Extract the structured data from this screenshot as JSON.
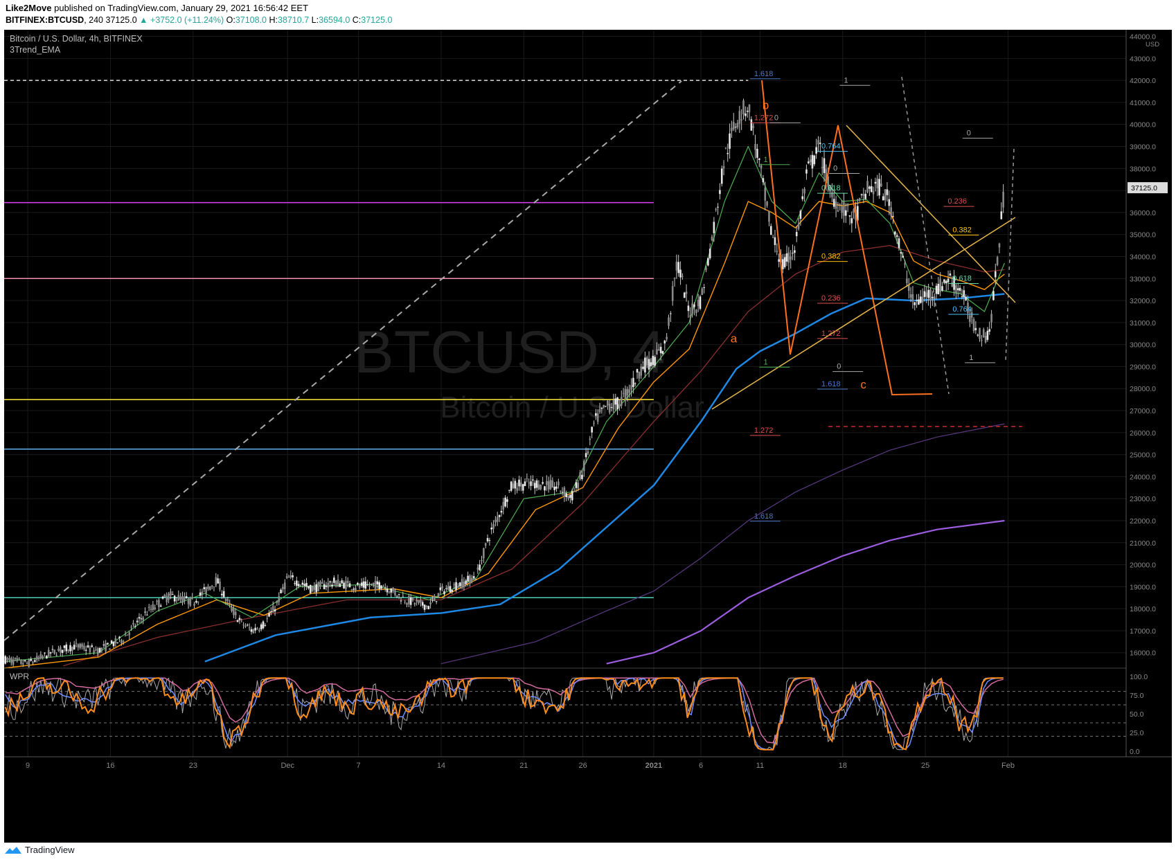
{
  "header": {
    "publisher": "Like2Move",
    "published_text": "published on TradingView.com, January 29, 2021 16:56:42 EET",
    "symbol": "BITFINEX:BTCUSD",
    "interval": "240",
    "last": "37125.0",
    "change": "+3752.0 (+11.24%)",
    "open_label": "O:",
    "open": "37108.0",
    "high_label": "H:",
    "high": "38710.7",
    "low_label": "L:",
    "low": "36594.0",
    "close_label": "C:",
    "close": "37125.0"
  },
  "chart_title": "Bitcoin / U.S. Dollar, 4h, BITFINEX",
  "indicator_label": "3Trend_EMA",
  "watermark": {
    "line1": "BTCUSD, 4",
    "line2": "Bitcoin / U.S. Dollar"
  },
  "wpr_label": "WPR",
  "footer_brand": "TradingView",
  "colors": {
    "background": "#000000",
    "grid": "#1a1a1a",
    "ema_fast": "#4caf50",
    "ema_mid": "#ff9800",
    "ema_slow": "#8b2e2e",
    "ema_200": "#1e88e5",
    "ema_violet": "#9c5de0",
    "wpr_orange": "#ff8c1a",
    "wpr_blue": "#6e8fff",
    "wpr_pink": "#d46aa0",
    "wpr_gray": "#aaaaaa"
  },
  "chart_data": {
    "type": "candlestick",
    "y_axis": {
      "unit": "USD",
      "ticks": [
        "44000.0",
        "43000.0",
        "42000.0",
        "41000.0",
        "40000.0",
        "39000.0",
        "38000.0",
        "37000.0",
        "36000.0",
        "35000.0",
        "34000.0",
        "33000.0",
        "32000.0",
        "31000.0",
        "30000.0",
        "29000.0",
        "28000.0",
        "27000.0",
        "26000.0",
        "25000.0",
        "24000.0",
        "23000.0",
        "22000.0",
        "21000.0",
        "20000.0",
        "19000.0",
        "18000.0",
        "17000.0",
        "16000.0"
      ],
      "range": [
        15300,
        44300
      ],
      "last_price_label": "37125.0"
    },
    "x_axis": {
      "ticks": [
        {
          "label": "9",
          "day": 9
        },
        {
          "label": "16",
          "day": 16
        },
        {
          "label": "23",
          "day": 23
        },
        {
          "label": "Dec",
          "day": 31
        },
        {
          "label": "7",
          "day": 37
        },
        {
          "label": "14",
          "day": 44
        },
        {
          "label": "21",
          "day": 51
        },
        {
          "label": "26",
          "day": 56
        },
        {
          "label": "2021",
          "day": 62
        },
        {
          "label": "6",
          "day": 66
        },
        {
          "label": "11",
          "day": 71
        },
        {
          "label": "18",
          "day": 78
        },
        {
          "label": "25",
          "day": 85
        },
        {
          "label": "Feb",
          "day": 92
        }
      ],
      "range": [
        7,
        102
      ]
    },
    "price_path": [
      [
        7,
        15700
      ],
      [
        9,
        15500
      ],
      [
        11,
        16000
      ],
      [
        13,
        16300
      ],
      [
        15,
        16100
      ],
      [
        17,
        16600
      ],
      [
        19,
        17800
      ],
      [
        21,
        18600
      ],
      [
        23,
        18300
      ],
      [
        25,
        19300
      ],
      [
        26,
        18200
      ],
      [
        27,
        17400
      ],
      [
        28,
        17000
      ],
      [
        29,
        17300
      ],
      [
        30,
        18100
      ],
      [
        31,
        19400
      ],
      [
        32,
        19200
      ],
      [
        33,
        18900
      ],
      [
        35,
        19200
      ],
      [
        37,
        19000
      ],
      [
        39,
        19100
      ],
      [
        41,
        18400
      ],
      [
        43,
        18100
      ],
      [
        44,
        18800
      ],
      [
        46,
        19200
      ],
      [
        47,
        19500
      ],
      [
        48,
        21200
      ],
      [
        50,
        23600
      ],
      [
        52,
        23700
      ],
      [
        54,
        23500
      ],
      [
        55,
        23000
      ],
      [
        56,
        24200
      ],
      [
        57,
        26500
      ],
      [
        58,
        27200
      ],
      [
        59,
        27300
      ],
      [
        60,
        28000
      ],
      [
        61,
        29000
      ],
      [
        62,
        29300
      ],
      [
        63,
        30000
      ],
      [
        64,
        33800
      ],
      [
        65,
        31500
      ],
      [
        66,
        32000
      ],
      [
        67,
        35000
      ],
      [
        68,
        38500
      ],
      [
        69,
        40200
      ],
      [
        70,
        40900
      ],
      [
        71,
        38000
      ],
      [
        72,
        35000
      ],
      [
        73,
        33500
      ],
      [
        74,
        34500
      ],
      [
        75,
        37800
      ],
      [
        76,
        39000
      ],
      [
        77,
        36800
      ],
      [
        78,
        36200
      ],
      [
        79,
        35700
      ],
      [
        80,
        37000
      ],
      [
        81,
        37200
      ],
      [
        82,
        36500
      ],
      [
        83,
        34000
      ],
      [
        84,
        31800
      ],
      [
        85,
        32200
      ],
      [
        86,
        32500
      ],
      [
        87,
        33000
      ],
      [
        88,
        32500
      ],
      [
        89,
        31000
      ],
      [
        90,
        30300
      ],
      [
        90.5,
        30800
      ],
      [
        91,
        33300
      ],
      [
        91.7,
        37125
      ]
    ],
    "ema_fast_path": [
      [
        7,
        15600
      ],
      [
        15,
        16000
      ],
      [
        20,
        17900
      ],
      [
        24,
        18700
      ],
      [
        28,
        17600
      ],
      [
        32,
        19000
      ],
      [
        38,
        19100
      ],
      [
        43,
        18400
      ],
      [
        47,
        19400
      ],
      [
        51,
        23000
      ],
      [
        55,
        23300
      ],
      [
        58,
        26500
      ],
      [
        62,
        29000
      ],
      [
        65,
        31000
      ],
      [
        68,
        36500
      ],
      [
        70,
        39000
      ],
      [
        72,
        36500
      ],
      [
        74,
        35500
      ],
      [
        76,
        37800
      ],
      [
        78,
        36500
      ],
      [
        80,
        36600
      ],
      [
        82,
        35500
      ],
      [
        84,
        32800
      ],
      [
        86,
        32500
      ],
      [
        88,
        32300
      ],
      [
        90,
        31500
      ],
      [
        91.7,
        33700
      ]
    ],
    "ema_mid_path": [
      [
        7,
        15300
      ],
      [
        15,
        15800
      ],
      [
        20,
        17300
      ],
      [
        25,
        18400
      ],
      [
        29,
        17700
      ],
      [
        33,
        18700
      ],
      [
        40,
        18900
      ],
      [
        44,
        18500
      ],
      [
        48,
        19600
      ],
      [
        52,
        22500
      ],
      [
        56,
        23500
      ],
      [
        59,
        26200
      ],
      [
        62,
        28300
      ],
      [
        65,
        29800
      ],
      [
        68,
        33700
      ],
      [
        70,
        36500
      ],
      [
        72,
        36000
      ],
      [
        74,
        35300
      ],
      [
        76,
        36500
      ],
      [
        78,
        36300
      ],
      [
        80,
        36500
      ],
      [
        82,
        36000
      ],
      [
        84,
        33800
      ],
      [
        86,
        33200
      ],
      [
        88,
        32900
      ],
      [
        90,
        32500
      ],
      [
        91.7,
        33200
      ]
    ],
    "ema_slow_path": [
      [
        12,
        15400
      ],
      [
        20,
        16700
      ],
      [
        28,
        17600
      ],
      [
        36,
        18400
      ],
      [
        44,
        18400
      ],
      [
        50,
        19800
      ],
      [
        56,
        22800
      ],
      [
        62,
        26500
      ],
      [
        66,
        28800
      ],
      [
        70,
        31500
      ],
      [
        74,
        33200
      ],
      [
        78,
        34200
      ],
      [
        82,
        34500
      ],
      [
        86,
        33800
      ],
      [
        90,
        33300
      ],
      [
        91.7,
        33400
      ]
    ],
    "ema_200_path": [
      [
        24,
        15600
      ],
      [
        30,
        16800
      ],
      [
        38,
        17600
      ],
      [
        44,
        17800
      ],
      [
        49,
        18200
      ],
      [
        54,
        19800
      ],
      [
        58,
        21700
      ],
      [
        62,
        23600
      ],
      [
        66,
        26500
      ],
      [
        69,
        28900
      ],
      [
        71,
        29700
      ],
      [
        74,
        30500
      ],
      [
        77,
        31400
      ],
      [
        80,
        32100
      ],
      [
        84,
        32000
      ],
      [
        88,
        32100
      ],
      [
        91.7,
        32300
      ]
    ],
    "ema_violet_thin_path": [
      [
        44,
        15500
      ],
      [
        52,
        16500
      ],
      [
        58,
        17900
      ],
      [
        62,
        18800
      ],
      [
        66,
        20300
      ],
      [
        70,
        22000
      ],
      [
        74,
        23300
      ],
      [
        78,
        24300
      ],
      [
        82,
        25200
      ],
      [
        86,
        25800
      ],
      [
        91.7,
        26400
      ]
    ],
    "ema_violet_path": [
      [
        58,
        15500
      ],
      [
        62,
        16000
      ],
      [
        66,
        17000
      ],
      [
        70,
        18500
      ],
      [
        74,
        19500
      ],
      [
        78,
        20400
      ],
      [
        82,
        21100
      ],
      [
        86,
        21600
      ],
      [
        91.7,
        22000
      ]
    ],
    "horizontal_levels": [
      {
        "price": 42000,
        "color": "#dddddd",
        "dashed": true
      },
      {
        "price": 36450,
        "color": "#e040fb"
      },
      {
        "price": 33000,
        "color": "#f48fb1"
      },
      {
        "price": 27500,
        "color": "#ffeb3b"
      },
      {
        "price": 25250,
        "color": "#64b5f6"
      },
      {
        "price": 18500,
        "color": "#4dd0b4"
      }
    ],
    "annotations": [
      {
        "text": "1.618",
        "day": 70.5,
        "price": 42200,
        "color": "#4a78c8"
      },
      {
        "text": "1.272",
        "day": 70.5,
        "price": 40200,
        "color": "#e05050"
      },
      {
        "text": "1",
        "day": 71.3,
        "price": 38300,
        "color": "#4caf50"
      },
      {
        "text": "0",
        "day": 72.2,
        "price": 40200,
        "color": "#aaaaaa"
      },
      {
        "text": "1",
        "day": 71.3,
        "price": 29100,
        "color": "#4caf50"
      },
      {
        "text": "1.272",
        "day": 70.5,
        "price": 26000,
        "color": "#e05050"
      },
      {
        "text": "1.618",
        "day": 70.5,
        "price": 22100,
        "color": "#4a78c8"
      },
      {
        "text": "0.764",
        "day": 76.2,
        "price": 38900,
        "color": "#4fc3f7"
      },
      {
        "text": "0",
        "day": 77.2,
        "price": 37900,
        "color": "#aaaaaa"
      },
      {
        "text": "0.618",
        "day": 76.2,
        "price": 37000,
        "color": "#66d9a8"
      },
      {
        "text": "0.382",
        "day": 76.2,
        "price": 33900,
        "color": "#ffc107"
      },
      {
        "text": "0.236",
        "day": 76.2,
        "price": 32000,
        "color": "#e05050"
      },
      {
        "text": "1.272",
        "day": 76.2,
        "price": 30400,
        "color": "#e05050"
      },
      {
        "text": "0",
        "day": 77.5,
        "price": 28900,
        "color": "#aaaaaa"
      },
      {
        "text": "1.618",
        "day": 76.2,
        "price": 28100,
        "color": "#4a78c8"
      },
      {
        "text": "1",
        "day": 78.1,
        "price": 41900,
        "color": "#aaaaaa"
      },
      {
        "text": "0",
        "day": 88.5,
        "price": 39500,
        "color": "#aaaaaa"
      },
      {
        "text": "0.236",
        "day": 86.9,
        "price": 36400,
        "color": "#e05050"
      },
      {
        "text": "0.382",
        "day": 87.3,
        "price": 35100,
        "color": "#ffc107"
      },
      {
        "text": "0.618",
        "day": 87.3,
        "price": 32900,
        "color": "#66d9a8"
      },
      {
        "text": "0.764",
        "day": 87.3,
        "price": 31500,
        "color": "#4fc3f7"
      },
      {
        "text": "1",
        "day": 88.7,
        "price": 29300,
        "color": "#aaaaaa"
      }
    ],
    "wave_labels": [
      {
        "text": "a",
        "day": 68.5,
        "price": 30100
      },
      {
        "text": "b",
        "day": 71.2,
        "price": 40700
      },
      {
        "text": "c",
        "day": 79.5,
        "price": 28000
      }
    ],
    "wpr": {
      "range": [
        0,
        100
      ],
      "ticks": [
        "100.0",
        "75.0",
        "50.0",
        "25.0",
        "0.0"
      ],
      "dashed_levels": [
        80,
        62,
        38,
        20
      ]
    }
  }
}
